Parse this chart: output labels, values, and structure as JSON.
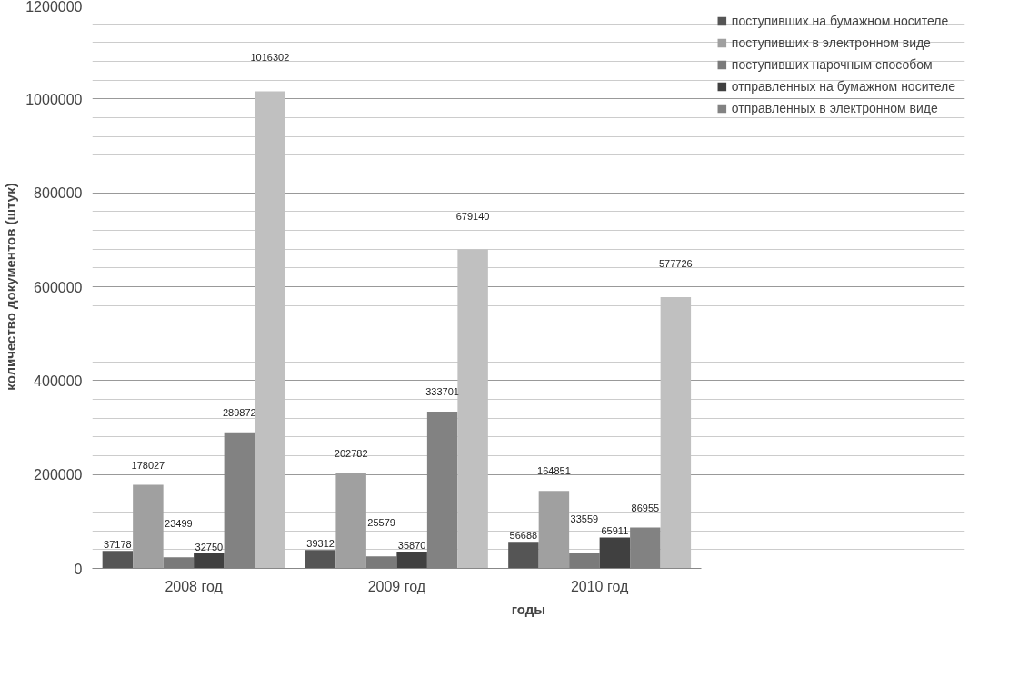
{
  "chart_data": {
    "type": "bar",
    "xlabel": "годы",
    "ylabel": "количество документов (штук)",
    "categories": [
      "2008 год",
      "2009 год",
      "2010 год"
    ],
    "series": [
      {
        "name": "поступивших на бумажном носителе",
        "color": "#555555",
        "values": [
          37178,
          39312,
          56688
        ]
      },
      {
        "name": "поступивших в электронном виде",
        "color": "#a0a0a0",
        "values": [
          178027,
          202782,
          164851
        ]
      },
      {
        "name": "поступивших нарочным способом",
        "color": "#7a7a7a",
        "values": [
          23499,
          25579,
          33559
        ]
      },
      {
        "name": "отправленных на бумажном носителе",
        "color": "#404040",
        "values": [
          32750,
          35870,
          65911
        ]
      },
      {
        "name": "отправленных в электронном виде",
        "color": "#828282",
        "values": [
          289872,
          333701,
          86955
        ]
      },
      {
        "color": "#c0c0c0",
        "values": [
          1016302,
          679140,
          577726
        ]
      }
    ],
    "ylim": [
      0,
      1200000
    ],
    "yticks": [
      0,
      200000,
      400000,
      600000,
      800000,
      1000000,
      1200000
    ],
    "grid": "y",
    "legend": "right",
    "data_labels": true
  }
}
